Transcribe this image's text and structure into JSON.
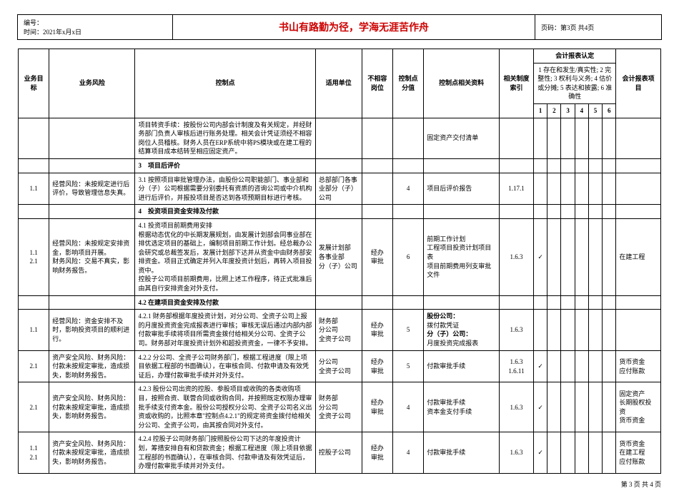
{
  "header": {
    "serial_label": "编号：",
    "time_label": "时间：2021年x月x日",
    "title": "书山有路勤为径，学海无涯苦作舟",
    "page_info": "页码：第3页 共4页"
  },
  "columns": {
    "goal": "业务目标",
    "risk": "业务风险",
    "control": "控制点",
    "unit": "适用单位",
    "post": "不相容岗位",
    "score": "控制点分值",
    "data": "控制点相关资料",
    "ref": "相关制度索引",
    "acc_group": "会计报表认定",
    "acc_desc": "1 存在和发生/真实性; 2 完整性; 3 权利与义务; 4 估价或分摊; 5 表达和披露; 6 准确性",
    "item": "会计报表项目",
    "acc_nums": [
      "1",
      "2",
      "3",
      "4",
      "5",
      "6"
    ]
  },
  "sections": {
    "s3": "3　项目后评价",
    "s4": "4　投资项目资金安排及付款",
    "s42a": "4.2 在建项目资金安排及付款"
  },
  "rows": [
    {
      "goal": "",
      "risk": "",
      "control": "项目转资手续：按股份公司内部会计制度及有关规定，并经财务部门负责人审核后进行账务处理。相关会计凭证须经不相容岗位人员稽核。财务人员在ERP系统中将PS模块或在建工程的结算项目成本结转至相应固定资产。",
      "unit": "",
      "post": "",
      "score": "",
      "data": "固定资产交付清单",
      "ref": "",
      "acc": [
        "",
        "",
        "",
        "",
        "",
        ""
      ],
      "item": ""
    },
    {
      "goal": "1.1",
      "risk": "经营风险：未按规定进行后评价，导致管理信息失真。",
      "control": "3.1 按照项目审批管理办法，由股份公司职能部门、事业部和分（子）公司根据需要分别委托有资质的咨询公司或中介机构进行后评价，并报投项目是否达到各项预期目标进行考核。",
      "unit": "总部部门各事业部分（子）公司",
      "post": "",
      "score": "4",
      "data": "项目后评价报告",
      "ref": "1.17.1",
      "acc": [
        "",
        "",
        "",
        "",
        "",
        ""
      ],
      "item": ""
    },
    {
      "goal": "1.1\n2.1",
      "risk": "经营风险：未按规定安排资金，影响项目开展。\n财务风险：交易不真实，影响财务报告。",
      "control": "4.1 投资项目前期费用安排\n根据动态优化的中长期发展规划，由发展计划部会同事业部在排优选定项目的基础上，编制项目前期工作计划。经总裁办公会研究或总裁签发后，发展计划部下达并从资金中由财务部安排资金。项目正式确定并列入年度投资计划后，再转入项目投资中。\n控股子公司项目前期费用，比照上述工作程序，待正式批准后由其自行安排资金对外支付。",
      "unit": "发展计划部\n各事业部\n分（子）公司",
      "post": "经办\n审批",
      "score": "6",
      "data": "前期工作计划\n工程项目投资计划项目表\n项目前期费用列支审批文件",
      "ref": "1.6.3",
      "acc": [
        "✓",
        "",
        "",
        "",
        "",
        ""
      ],
      "item": "在建工程"
    },
    {
      "goal": "1.1",
      "risk": "经营风险：资金安排不及时，影响投资项目的顺利进行。",
      "control": "4.2.1 财务部根据年度投资计划，对分公司、全资子公司上报的月度投资资金完成报表进行审核；审核无误后通过内部内部付款审批手续将项目所需资金拨付给相关分公司、全资子公司。财务部对年度投资计划外和超投资资金，一律不予安排。",
      "unit": "财务部\n分公司\n全资子公司",
      "post": "经办\n审批",
      "score": "5",
      "data_rich": "<b>股份公司：</b><br>拨付款凭证<br><b>分（子）公司：</b><br>月度投资完成报表",
      "ref": "1.6.3",
      "acc": [
        "",
        "",
        "",
        "",
        "",
        ""
      ],
      "item": ""
    },
    {
      "goal": "2.1",
      "risk": "资产安全风险、财务风险：付款未按规定审批，造成损失，影响财务报告。",
      "control": "4.2.2 分公司、全资子公司财务部门，根据工程进度（限上项目依据工程部的书面确认），在审核合同、付款申请及有效凭证后，办理付款审批手续并对外支付。",
      "unit": "分公司\n全资子公司",
      "post": "经办\n审批",
      "score": "5",
      "data": "付款审批手续",
      "ref": "1.6.3\n1.6.11",
      "acc": [
        "✓",
        "",
        "",
        "",
        "",
        ""
      ],
      "item": "货币资金\n应付账款"
    },
    {
      "goal": "2.1",
      "risk": "资产安全风险、财务风险：付款未按规定审批，造成损失，影响财务报告。",
      "control": "4.2.3 股份公司出资的控股、参股项目或收购的各类收购项目，按照合资、联营合同或收购合同，并按照既定权限办理审批手续支付资本金。股份公司授权分公司、全资子公司名义出资或收购的，比照本章\"控制点4.2.1\"的规定将资金拨付给相关分公司、全资子公司，由其按合同对外支付。",
      "unit": "财务部\n分公司\n全资子公司",
      "post": "经办\n审批",
      "score": "4",
      "data": "付款审批手续\n资本金支付手续",
      "ref": "1.6.3",
      "acc": [
        "✓",
        "",
        "",
        "",
        "",
        ""
      ],
      "item": "固定资产\n长期股权投资\n货币资金"
    },
    {
      "goal": "1.1\n2.1",
      "risk": "资产安全风险、财务风险：付款未按规定审批，造成损失，影响财务报告。",
      "control": "4.2.4 控股子公司财务部门按照股份公司下达的年度投资计划，筹措安排自有和贷款资金；根据工程进度（限上项目依据工程部的书面确认），在审核合同、付款申请及有效凭证后，办理付款审批手续并对外支付。",
      "unit": "控股子公司",
      "post": "经办\n审批",
      "score": "4",
      "data": "付款审批手续",
      "ref": "1.6.3",
      "acc": [
        "✓",
        "",
        "",
        "",
        "",
        ""
      ],
      "item": "货币资金\n在建工程\n应付账款"
    }
  ],
  "footer": "第 3 页 共 4 页"
}
